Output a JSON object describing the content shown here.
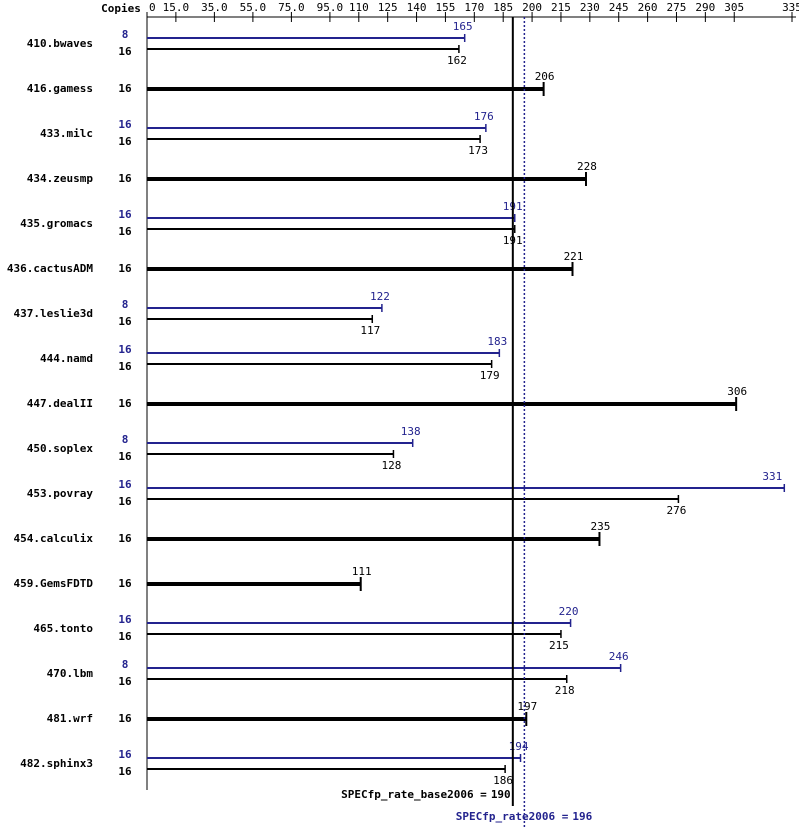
{
  "chart_data": {
    "type": "spec-bar",
    "copies_header": "Copies",
    "categories": [
      "410.bwaves",
      "416.gamess",
      "433.milc",
      "434.zeusmp",
      "435.gromacs",
      "436.cactusADM",
      "437.leslie3d",
      "444.namd",
      "447.dealII",
      "450.soplex",
      "453.povray",
      "454.calculix",
      "459.GemsFDTD",
      "465.tonto",
      "470.lbm",
      "481.wrf",
      "482.sphinx3"
    ],
    "peak": {
      "color": "#23238e",
      "copies": [
        8,
        null,
        16,
        null,
        16,
        null,
        8,
        16,
        null,
        8,
        16,
        null,
        null,
        16,
        8,
        null,
        16
      ],
      "values": [
        165,
        null,
        176,
        null,
        191,
        null,
        122,
        183,
        null,
        138,
        331,
        null,
        null,
        220,
        246,
        null,
        194
      ]
    },
    "base": {
      "color": "#000000",
      "copies": [
        16,
        16,
        16,
        16,
        16,
        16,
        16,
        16,
        16,
        16,
        16,
        16,
        16,
        16,
        16,
        16,
        16
      ],
      "values": [
        162,
        206,
        173,
        228,
        191,
        221,
        117,
        179,
        306,
        128,
        276,
        235,
        111,
        215,
        218,
        197,
        186
      ]
    },
    "base_score": {
      "label": "SPECfp_rate_base2006 =",
      "value": 190
    },
    "peak_score": {
      "label": "SPECfp_rate2006 =",
      "value": 196
    },
    "xlim": [
      0,
      335
    ],
    "xticks": [
      0,
      {
        "value": 15,
        "label": "15.0"
      },
      {
        "value": 35,
        "label": "35.0"
      },
      {
        "value": 55,
        "label": "55.0"
      },
      {
        "value": 75,
        "label": "75.0"
      },
      {
        "value": 95,
        "label": "95.0"
      },
      110,
      125,
      140,
      155,
      170,
      185,
      200,
      215,
      230,
      245,
      260,
      275,
      290,
      305,
      335
    ]
  }
}
